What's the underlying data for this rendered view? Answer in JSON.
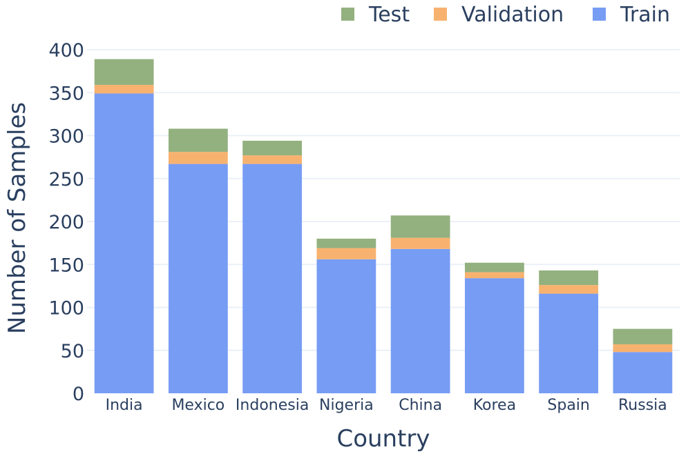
{
  "chart_data": {
    "type": "bar",
    "stacked": true,
    "categories": [
      "India",
      "Mexico",
      "Indonesia",
      "Nigeria",
      "China",
      "Korea",
      "Spain",
      "Russia"
    ],
    "series": [
      {
        "name": "Train",
        "color": "#779cf4",
        "values": [
          349,
          267,
          267,
          156,
          168,
          134,
          116,
          48
        ]
      },
      {
        "name": "Validation",
        "color": "#f8b26f",
        "values": [
          10,
          14,
          10,
          13,
          13,
          7,
          10,
          9
        ]
      },
      {
        "name": "Test",
        "color": "#93b17f",
        "values": [
          30,
          27,
          17,
          11,
          26,
          11,
          17,
          18
        ]
      }
    ],
    "legend_order": [
      "Test",
      "Validation",
      "Train"
    ],
    "legend_position": "top-right",
    "xlabel": "Country",
    "ylabel": "Number of Samples",
    "ylim": [
      0,
      400
    ],
    "yticks": [
      0,
      50,
      100,
      150,
      200,
      250,
      300,
      350,
      400
    ],
    "grid": true
  }
}
